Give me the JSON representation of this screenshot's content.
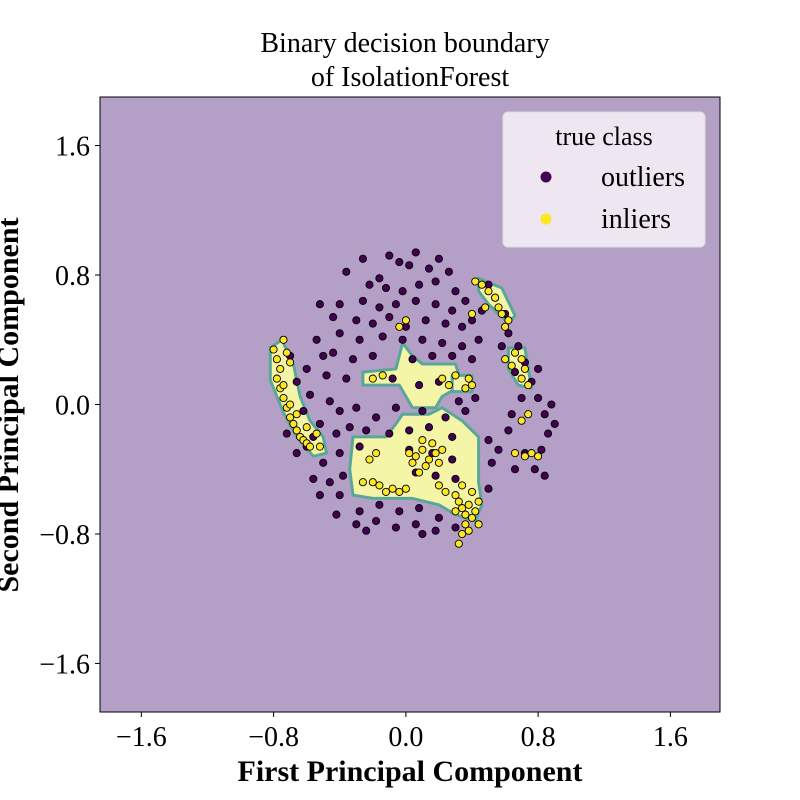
{
  "chart_data": {
    "type": "scatter",
    "title_line1": "Binary decision boundary",
    "title_line2": "of IsolationForest",
    "xlabel": "First Principal Component",
    "ylabel": "Second Principal Component",
    "xlim": [
      -1.85,
      1.9
    ],
    "ylim": [
      -1.9,
      1.9
    ],
    "xticks": [
      -1.6,
      -0.8,
      0.0,
      0.8,
      1.6
    ],
    "xtick_labels": [
      "−1.6",
      "−0.8",
      "0.0",
      "0.8",
      "1.6"
    ],
    "yticks": [
      1.6,
      0.8,
      0.0,
      -0.8,
      -1.6
    ],
    "ytick_labels": [
      "1.6",
      "0.8",
      "0.0",
      "−0.8",
      "−1.6"
    ],
    "background_color": "#b4a0c6",
    "region_color": "#f5f5a8",
    "region_edge_color": "#5aa79a",
    "legend": {
      "title": "true class",
      "position": "top-right",
      "items": [
        {
          "label": "outliers",
          "color": "#440154"
        },
        {
          "label": "inliers",
          "color": "#fde725"
        }
      ]
    },
    "inlier_regions": [
      [
        [
          -0.82,
          0.35
        ],
        [
          -0.75,
          0.4
        ],
        [
          -0.68,
          0.25
        ],
        [
          -0.64,
          0.05
        ],
        [
          -0.58,
          -0.1
        ],
        [
          -0.5,
          -0.2
        ],
        [
          -0.48,
          -0.3
        ],
        [
          -0.56,
          -0.32
        ],
        [
          -0.66,
          -0.2
        ],
        [
          -0.74,
          -0.05
        ],
        [
          -0.82,
          0.15
        ]
      ],
      [
        [
          -0.26,
          0.2
        ],
        [
          -0.06,
          0.22
        ],
        [
          -0.02,
          0.38
        ],
        [
          0.04,
          0.3
        ],
        [
          0.1,
          0.25
        ],
        [
          0.3,
          0.25
        ],
        [
          0.34,
          0.12
        ],
        [
          0.22,
          0.05
        ],
        [
          0.18,
          -0.02
        ],
        [
          0.04,
          -0.02
        ],
        [
          -0.04,
          0.12
        ],
        [
          -0.26,
          0.12
        ]
      ],
      [
        [
          -0.02,
          -0.06
        ],
        [
          0.14,
          -0.06
        ],
        [
          0.22,
          -0.02
        ],
        [
          0.34,
          -0.1
        ],
        [
          0.44,
          -0.2
        ],
        [
          0.44,
          -0.48
        ],
        [
          0.46,
          -0.62
        ],
        [
          0.42,
          -0.72
        ],
        [
          0.3,
          -0.68
        ],
        [
          0.2,
          -0.62
        ],
        [
          0.04,
          -0.58
        ],
        [
          -0.2,
          -0.58
        ],
        [
          -0.32,
          -0.56
        ],
        [
          -0.34,
          -0.4
        ],
        [
          -0.32,
          -0.2
        ],
        [
          -0.12,
          -0.2
        ],
        [
          -0.06,
          -0.12
        ]
      ],
      [
        [
          0.44,
          0.78
        ],
        [
          0.58,
          0.72
        ],
        [
          0.66,
          0.55
        ],
        [
          0.62,
          0.5
        ],
        [
          0.5,
          0.62
        ],
        [
          0.44,
          0.7
        ]
      ],
      [
        [
          0.62,
          0.35
        ],
        [
          0.72,
          0.35
        ],
        [
          0.76,
          0.1
        ],
        [
          0.68,
          0.12
        ],
        [
          0.62,
          0.22
        ]
      ],
      [
        [
          0.28,
          0.18
        ],
        [
          0.4,
          0.18
        ],
        [
          0.4,
          0.08
        ],
        [
          0.28,
          0.08
        ]
      ]
    ],
    "series": [
      {
        "name": "outliers",
        "color": "#440154",
        "points": [
          [
            -0.36,
            0.82
          ],
          [
            -0.16,
            0.78
          ],
          [
            -0.04,
            0.88
          ],
          [
            0.02,
            0.86
          ],
          [
            0.14,
            0.84
          ],
          [
            0.26,
            0.82
          ],
          [
            -0.22,
            0.74
          ],
          [
            -0.12,
            0.72
          ],
          [
            -0.02,
            0.7
          ],
          [
            0.08,
            0.74
          ],
          [
            0.18,
            0.76
          ],
          [
            0.3,
            0.7
          ],
          [
            -0.26,
            0.64
          ],
          [
            -0.16,
            0.6
          ],
          [
            -0.06,
            0.62
          ],
          [
            0.06,
            0.64
          ],
          [
            0.18,
            0.62
          ],
          [
            0.28,
            0.58
          ],
          [
            -0.3,
            0.52
          ],
          [
            -0.2,
            0.5
          ],
          [
            -0.1,
            0.54
          ],
          [
            0.0,
            0.48
          ],
          [
            0.12,
            0.52
          ],
          [
            0.24,
            0.5
          ],
          [
            0.34,
            0.48
          ],
          [
            -0.4,
            0.44
          ],
          [
            -0.28,
            0.4
          ],
          [
            -0.14,
            0.42
          ],
          [
            -0.02,
            0.4
          ],
          [
            0.1,
            0.4
          ],
          [
            0.22,
            0.38
          ],
          [
            0.34,
            0.36
          ],
          [
            -0.54,
            0.4
          ],
          [
            -0.44,
            0.32
          ],
          [
            -0.32,
            0.28
          ],
          [
            -0.2,
            0.3
          ],
          [
            0.04,
            0.28
          ],
          [
            0.16,
            0.3
          ],
          [
            0.28,
            0.3
          ],
          [
            0.4,
            0.28
          ],
          [
            -0.6,
            0.22
          ],
          [
            -0.48,
            0.18
          ],
          [
            -0.36,
            0.16
          ],
          [
            -0.08,
            0.16
          ],
          [
            0.08,
            0.12
          ],
          [
            0.2,
            0.14
          ],
          [
            0.32,
            0.02
          ],
          [
            0.42,
            0.04
          ],
          [
            -0.58,
            0.06
          ],
          [
            -0.46,
            0.02
          ],
          [
            -0.4,
            -0.04
          ],
          [
            -0.3,
            -0.02
          ],
          [
            -0.18,
            -0.08
          ],
          [
            -0.06,
            -0.02
          ],
          [
            0.1,
            -0.04
          ],
          [
            0.24,
            -0.08
          ],
          [
            0.36,
            -0.04
          ],
          [
            -0.52,
            -0.12
          ],
          [
            -0.42,
            -0.18
          ],
          [
            -0.34,
            -0.14
          ],
          [
            -0.24,
            -0.16
          ],
          [
            -0.1,
            -0.18
          ],
          [
            0.02,
            -0.16
          ],
          [
            0.14,
            -0.14
          ],
          [
            0.28,
            -0.2
          ],
          [
            -0.6,
            -0.26
          ],
          [
            -0.5,
            -0.36
          ],
          [
            -0.4,
            -0.3
          ],
          [
            -0.28,
            -0.26
          ],
          [
            0.02,
            -0.28
          ],
          [
            0.16,
            -0.3
          ],
          [
            0.28,
            -0.34
          ],
          [
            -0.56,
            -0.46
          ],
          [
            -0.46,
            -0.48
          ],
          [
            -0.38,
            -0.44
          ],
          [
            0.06,
            -0.42
          ],
          [
            0.18,
            -0.44
          ],
          [
            0.3,
            -0.46
          ],
          [
            -0.52,
            -0.56
          ],
          [
            -0.4,
            -0.56
          ],
          [
            -0.28,
            -0.66
          ],
          [
            -0.16,
            -0.62
          ],
          [
            -0.04,
            -0.66
          ],
          [
            0.08,
            -0.64
          ],
          [
            0.2,
            -0.7
          ],
          [
            -0.42,
            -0.68
          ],
          [
            -0.3,
            -0.74
          ],
          [
            -0.18,
            -0.72
          ],
          [
            -0.06,
            -0.76
          ],
          [
            0.06,
            -0.74
          ],
          [
            0.18,
            -0.78
          ],
          [
            0.3,
            -0.76
          ],
          [
            -0.24,
            -0.78
          ],
          [
            0.1,
            -0.8
          ],
          [
            0.5,
            -0.22
          ],
          [
            0.52,
            -0.36
          ],
          [
            0.5,
            -0.52
          ],
          [
            0.56,
            -0.28
          ],
          [
            0.62,
            -0.16
          ],
          [
            0.66,
            -0.4
          ],
          [
            0.72,
            -0.3
          ],
          [
            0.78,
            -0.4
          ],
          [
            0.82,
            -0.28
          ],
          [
            0.86,
            -0.18
          ],
          [
            0.84,
            -0.06
          ],
          [
            0.8,
            0.04
          ],
          [
            0.76,
            0.14
          ],
          [
            0.72,
            0.26
          ],
          [
            0.68,
            0.36
          ],
          [
            0.62,
            0.44
          ],
          [
            0.6,
            0.56
          ],
          [
            0.54,
            0.66
          ],
          [
            0.5,
            0.74
          ],
          [
            0.46,
            0.58
          ],
          [
            0.58,
            0.36
          ],
          [
            0.66,
            0.2
          ],
          [
            0.7,
            0.04
          ],
          [
            0.64,
            -0.06
          ],
          [
            0.8,
            0.22
          ],
          [
            0.88,
            0.0
          ],
          [
            0.9,
            -0.12
          ],
          [
            0.84,
            -0.44
          ],
          [
            -0.7,
            0.3
          ],
          [
            -0.66,
            0.14
          ],
          [
            -0.62,
            -0.04
          ],
          [
            -0.56,
            -0.2
          ],
          [
            -0.66,
            -0.3
          ],
          [
            -0.72,
            -0.18
          ],
          [
            -0.5,
            0.3
          ],
          [
            -0.44,
            0.54
          ],
          [
            -0.52,
            0.62
          ],
          [
            -0.26,
            0.9
          ],
          [
            -0.1,
            0.92
          ],
          [
            0.06,
            0.94
          ],
          [
            0.2,
            0.9
          ],
          [
            -0.4,
            0.62
          ],
          [
            0.36,
            0.64
          ],
          [
            0.4,
            0.52
          ],
          [
            0.44,
            0.4
          ]
        ]
      },
      {
        "name": "inliers",
        "color": "#fde725",
        "points": [
          [
            -0.8,
            0.34
          ],
          [
            -0.78,
            0.28
          ],
          [
            -0.76,
            0.22
          ],
          [
            -0.78,
            0.16
          ],
          [
            -0.76,
            0.1
          ],
          [
            -0.74,
            0.04
          ],
          [
            -0.72,
            -0.02
          ],
          [
            -0.7,
            -0.08
          ],
          [
            -0.68,
            -0.12
          ],
          [
            -0.66,
            -0.16
          ],
          [
            -0.64,
            -0.2
          ],
          [
            -0.62,
            -0.22
          ],
          [
            -0.6,
            -0.24
          ],
          [
            -0.58,
            -0.26
          ],
          [
            -0.74,
            0.4
          ],
          [
            -0.72,
            0.32
          ],
          [
            -0.7,
            0.26
          ],
          [
            -0.74,
            0.12
          ],
          [
            -0.7,
            0.0
          ],
          [
            -0.66,
            -0.06
          ],
          [
            -0.6,
            -0.14
          ],
          [
            -0.54,
            -0.18
          ],
          [
            -0.52,
            -0.26
          ],
          [
            -0.2,
            0.16
          ],
          [
            -0.14,
            0.18
          ],
          [
            -0.04,
            0.48
          ],
          [
            0.0,
            0.52
          ],
          [
            0.22,
            0.16
          ],
          [
            0.26,
            0.12
          ],
          [
            0.3,
            0.18
          ],
          [
            0.38,
            0.16
          ],
          [
            0.4,
            0.12
          ],
          [
            0.36,
            0.1
          ],
          [
            0.42,
            0.76
          ],
          [
            0.46,
            0.74
          ],
          [
            0.5,
            0.7
          ],
          [
            0.54,
            0.66
          ],
          [
            0.56,
            0.6
          ],
          [
            0.58,
            0.56
          ],
          [
            0.62,
            0.52
          ],
          [
            0.6,
            0.48
          ],
          [
            0.66,
            0.32
          ],
          [
            0.7,
            0.28
          ],
          [
            0.72,
            0.22
          ],
          [
            0.7,
            0.16
          ],
          [
            0.74,
            0.12
          ],
          [
            0.6,
            0.28
          ],
          [
            0.64,
            0.24
          ],
          [
            0.7,
            -0.1
          ],
          [
            0.74,
            -0.06
          ],
          [
            0.72,
            -0.32
          ],
          [
            0.76,
            -0.3
          ],
          [
            0.66,
            -0.3
          ],
          [
            0.8,
            -0.32
          ],
          [
            0.4,
            0.56
          ],
          [
            0.48,
            0.6
          ],
          [
            0.02,
            -0.3
          ],
          [
            0.06,
            -0.32
          ],
          [
            0.1,
            -0.28
          ],
          [
            0.14,
            -0.34
          ],
          [
            0.18,
            -0.3
          ],
          [
            0.12,
            -0.38
          ],
          [
            0.04,
            -0.36
          ],
          [
            0.16,
            -0.24
          ],
          [
            0.2,
            -0.36
          ],
          [
            0.1,
            -0.22
          ],
          [
            0.22,
            -0.28
          ],
          [
            0.08,
            -0.42
          ],
          [
            -0.2,
            -0.48
          ],
          [
            -0.16,
            -0.5
          ],
          [
            -0.26,
            -0.48
          ],
          [
            -0.12,
            -0.54
          ],
          [
            -0.08,
            -0.52
          ],
          [
            -0.04,
            -0.54
          ],
          [
            0.0,
            -0.52
          ],
          [
            -0.22,
            -0.34
          ],
          [
            -0.18,
            -0.3
          ],
          [
            0.2,
            -0.5
          ],
          [
            0.24,
            -0.54
          ],
          [
            0.3,
            -0.56
          ],
          [
            0.32,
            -0.6
          ],
          [
            0.34,
            -0.64
          ],
          [
            0.36,
            -0.68
          ],
          [
            0.38,
            -0.62
          ],
          [
            0.4,
            -0.7
          ],
          [
            0.42,
            -0.66
          ],
          [
            0.44,
            -0.74
          ],
          [
            0.36,
            -0.74
          ],
          [
            0.34,
            -0.8
          ],
          [
            0.32,
            -0.86
          ],
          [
            0.34,
            -0.5
          ],
          [
            0.3,
            -0.66
          ],
          [
            0.4,
            -0.54
          ],
          [
            0.44,
            -0.6
          ],
          [
            0.38,
            -0.78
          ]
        ]
      }
    ]
  }
}
